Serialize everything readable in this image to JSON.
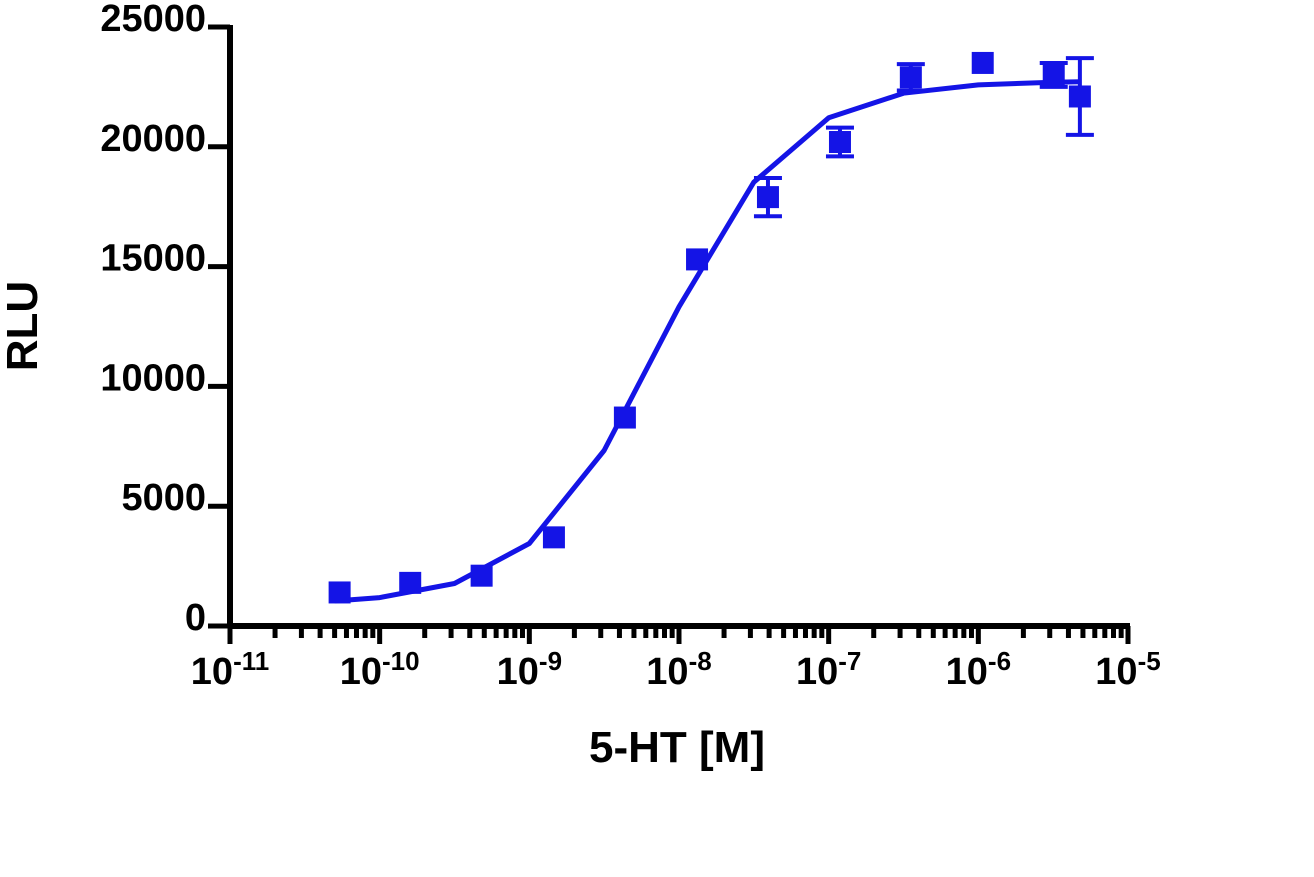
{
  "chart_data": {
    "type": "scatter",
    "x_label": "5-HT [M]",
    "y_label": "RLU",
    "xlog": true,
    "minor_ticks": true,
    "xlim": [
      1e-11,
      1e-05
    ],
    "ylim": [
      0,
      25000
    ],
    "xticks": [
      {
        "value": 1e-11,
        "label": "10",
        "exponent": "-11"
      },
      {
        "value": 1e-10,
        "label": "10",
        "exponent": "-10"
      },
      {
        "value": 1e-09,
        "label": "10",
        "exponent": "-9"
      },
      {
        "value": 1e-08,
        "label": "10",
        "exponent": "-8"
      },
      {
        "value": 1e-07,
        "label": "10",
        "exponent": "-7"
      },
      {
        "value": 1e-06,
        "label": "10",
        "exponent": "-6"
      },
      {
        "value": 1e-05,
        "label": "10",
        "exponent": "-5"
      }
    ],
    "yticks": [
      0,
      5000,
      10000,
      15000,
      20000,
      25000
    ],
    "series": [
      {
        "color": "#1414e6",
        "x": [
          5.4e-11,
          1.6e-10,
          4.8e-10,
          1.46e-09,
          4.35e-09,
          1.32e-08,
          3.93e-08,
          1.19e-07,
          3.54e-07,
          1.07e-06,
          3.19e-06,
          4.77e-06
        ],
        "values": [
          1400,
          1800,
          2100,
          3700,
          8700,
          15300,
          17900,
          20200,
          22900,
          23500,
          23000,
          22100
        ],
        "errors": [
          null,
          null,
          null,
          null,
          null,
          null,
          800,
          600,
          550,
          null,
          500,
          1600
        ]
      },
      {
        "color": "#1414e6",
        "x": [
          5e-11,
          1e-10,
          3.16e-10,
          1e-09,
          3.16e-09,
          1e-08,
          3.16e-08,
          1e-07,
          3.16e-07,
          1e-06,
          3.16e-06,
          4.8e-06
        ],
        "values": [
          1044,
          1184,
          1774,
          3444,
          7326,
          13322,
          18521,
          21209,
          22238,
          22585,
          22698,
          22715
        ]
      }
    ]
  }
}
